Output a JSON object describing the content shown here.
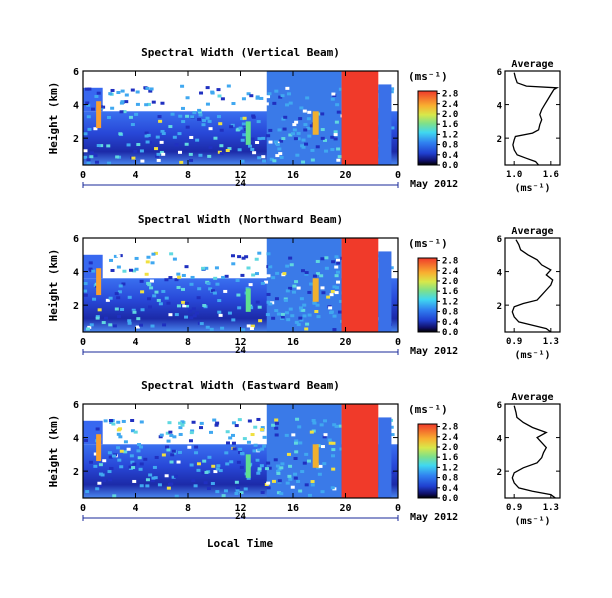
{
  "common": {
    "x_axis_label": "Local Time",
    "y_axis_label": "Height (km)",
    "colorbar_unit": "(ms⁻¹)",
    "avg_unit": "(ms⁻¹)",
    "avg_title": "Average",
    "date_label": "May 2012",
    "day_label": "24",
    "colors": {
      "white": "#ffffff",
      "navy": "#10106a",
      "blue": "#2f50e8",
      "cyan": "#40d8f0",
      "green": "#7ee08a",
      "yellow": "#f0e040",
      "red": "#f03a2a"
    }
  },
  "chart_data": [
    {
      "type": "heatmap",
      "title": "Spectral Width (Vertical Beam)",
      "xlabel": "",
      "ylabel": "Height (km)",
      "x_ticks": [
        "0",
        "4",
        "8",
        "12",
        "16",
        "20",
        "0"
      ],
      "y_ticks": [
        "2",
        "4",
        "6"
      ],
      "xlim": [
        0,
        24
      ],
      "ylim": [
        0.4,
        6
      ],
      "colorbar": {
        "ticks": [
          "0.0",
          "0.4",
          "0.8",
          "1.2",
          "1.6",
          "2.0",
          "2.4",
          "2.8"
        ],
        "range": [
          0,
          2.9
        ]
      },
      "average": {
        "xlabel": "(ms⁻¹)",
        "x_ticks": [
          "1.0",
          "1.6"
        ],
        "xlim": [
          0.85,
          1.75
        ],
        "y_ticks": [
          "2",
          "4",
          "6"
        ],
        "ylim": [
          0.4,
          6
        ],
        "profile": [
          [
            1.4,
            0.4
          ],
          [
            1.35,
            0.6
          ],
          [
            1.2,
            0.8
          ],
          [
            1.05,
            1.0
          ],
          [
            1.0,
            1.3
          ],
          [
            0.98,
            1.6
          ],
          [
            1.0,
            1.9
          ],
          [
            1.02,
            2.1
          ],
          [
            1.3,
            2.3
          ],
          [
            1.4,
            2.5
          ],
          [
            1.42,
            2.8
          ],
          [
            1.45,
            3.1
          ],
          [
            1.42,
            3.4
          ],
          [
            1.45,
            3.7
          ],
          [
            1.5,
            4.0
          ],
          [
            1.55,
            4.3
          ],
          [
            1.6,
            4.6
          ],
          [
            1.65,
            4.9
          ],
          [
            1.7,
            5.0
          ],
          [
            1.2,
            5.1
          ],
          [
            1.05,
            5.3
          ],
          [
            1.02,
            5.6
          ],
          [
            1.0,
            5.9
          ]
        ]
      }
    },
    {
      "type": "heatmap",
      "title": "Spectral Width (Northward Beam)",
      "xlabel": "",
      "ylabel": "Height (km)",
      "x_ticks": [
        "0",
        "4",
        "8",
        "12",
        "16",
        "20",
        "0"
      ],
      "y_ticks": [
        "2",
        "4",
        "6"
      ],
      "xlim": [
        0,
        24
      ],
      "ylim": [
        0.4,
        6
      ],
      "colorbar": {
        "ticks": [
          "0.0",
          "0.4",
          "0.8",
          "1.2",
          "1.6",
          "2.0",
          "2.4",
          "2.8"
        ],
        "range": [
          0,
          2.9
        ]
      },
      "average": {
        "xlabel": "(ms⁻¹)",
        "x_ticks": [
          "0.9",
          "1.3"
        ],
        "xlim": [
          0.8,
          1.4
        ],
        "y_ticks": [
          "2",
          "4",
          "6"
        ],
        "ylim": [
          0.4,
          6
        ],
        "profile": [
          [
            1.3,
            0.4
          ],
          [
            1.25,
            0.6
          ],
          [
            1.1,
            0.8
          ],
          [
            0.95,
            1.0
          ],
          [
            0.9,
            1.3
          ],
          [
            0.88,
            1.6
          ],
          [
            0.9,
            1.9
          ],
          [
            1.0,
            2.1
          ],
          [
            1.15,
            2.3
          ],
          [
            1.2,
            2.6
          ],
          [
            1.25,
            2.9
          ],
          [
            1.3,
            3.2
          ],
          [
            1.32,
            3.5
          ],
          [
            1.25,
            3.8
          ],
          [
            1.3,
            4.1
          ],
          [
            1.2,
            4.4
          ],
          [
            1.15,
            4.7
          ],
          [
            1.05,
            5.0
          ],
          [
            0.97,
            5.3
          ],
          [
            0.95,
            5.6
          ],
          [
            0.92,
            5.9
          ]
        ]
      }
    },
    {
      "type": "heatmap",
      "title": "Spectral Width (Eastward Beam)",
      "xlabel": "Local Time",
      "ylabel": "Height (km)",
      "x_ticks": [
        "0",
        "4",
        "8",
        "12",
        "16",
        "20",
        "0"
      ],
      "y_ticks": [
        "2",
        "4",
        "6"
      ],
      "xlim": [
        0,
        24
      ],
      "ylim": [
        0.4,
        6
      ],
      "colorbar": {
        "ticks": [
          "0.0",
          "0.4",
          "0.8",
          "1.2",
          "1.6",
          "2.0",
          "2.4",
          "2.8"
        ],
        "range": [
          0,
          2.9
        ]
      },
      "average": {
        "xlabel": "(ms⁻¹)",
        "x_ticks": [
          "0.9",
          "1.3"
        ],
        "xlim": [
          0.8,
          1.4
        ],
        "y_ticks": [
          "2",
          "4",
          "6"
        ],
        "ylim": [
          0.4,
          6
        ],
        "profile": [
          [
            1.35,
            0.4
          ],
          [
            1.3,
            0.6
          ],
          [
            1.1,
            0.8
          ],
          [
            0.95,
            1.0
          ],
          [
            0.9,
            1.3
          ],
          [
            0.88,
            1.6
          ],
          [
            0.9,
            1.9
          ],
          [
            1.0,
            2.2
          ],
          [
            1.15,
            2.5
          ],
          [
            1.2,
            2.8
          ],
          [
            1.22,
            3.1
          ],
          [
            1.25,
            3.4
          ],
          [
            1.2,
            3.7
          ],
          [
            1.15,
            4.0
          ],
          [
            1.25,
            4.3
          ],
          [
            1.1,
            4.6
          ],
          [
            1.0,
            4.9
          ],
          [
            0.93,
            5.2
          ],
          [
            0.92,
            5.5
          ],
          [
            0.9,
            5.9
          ]
        ]
      }
    }
  ]
}
